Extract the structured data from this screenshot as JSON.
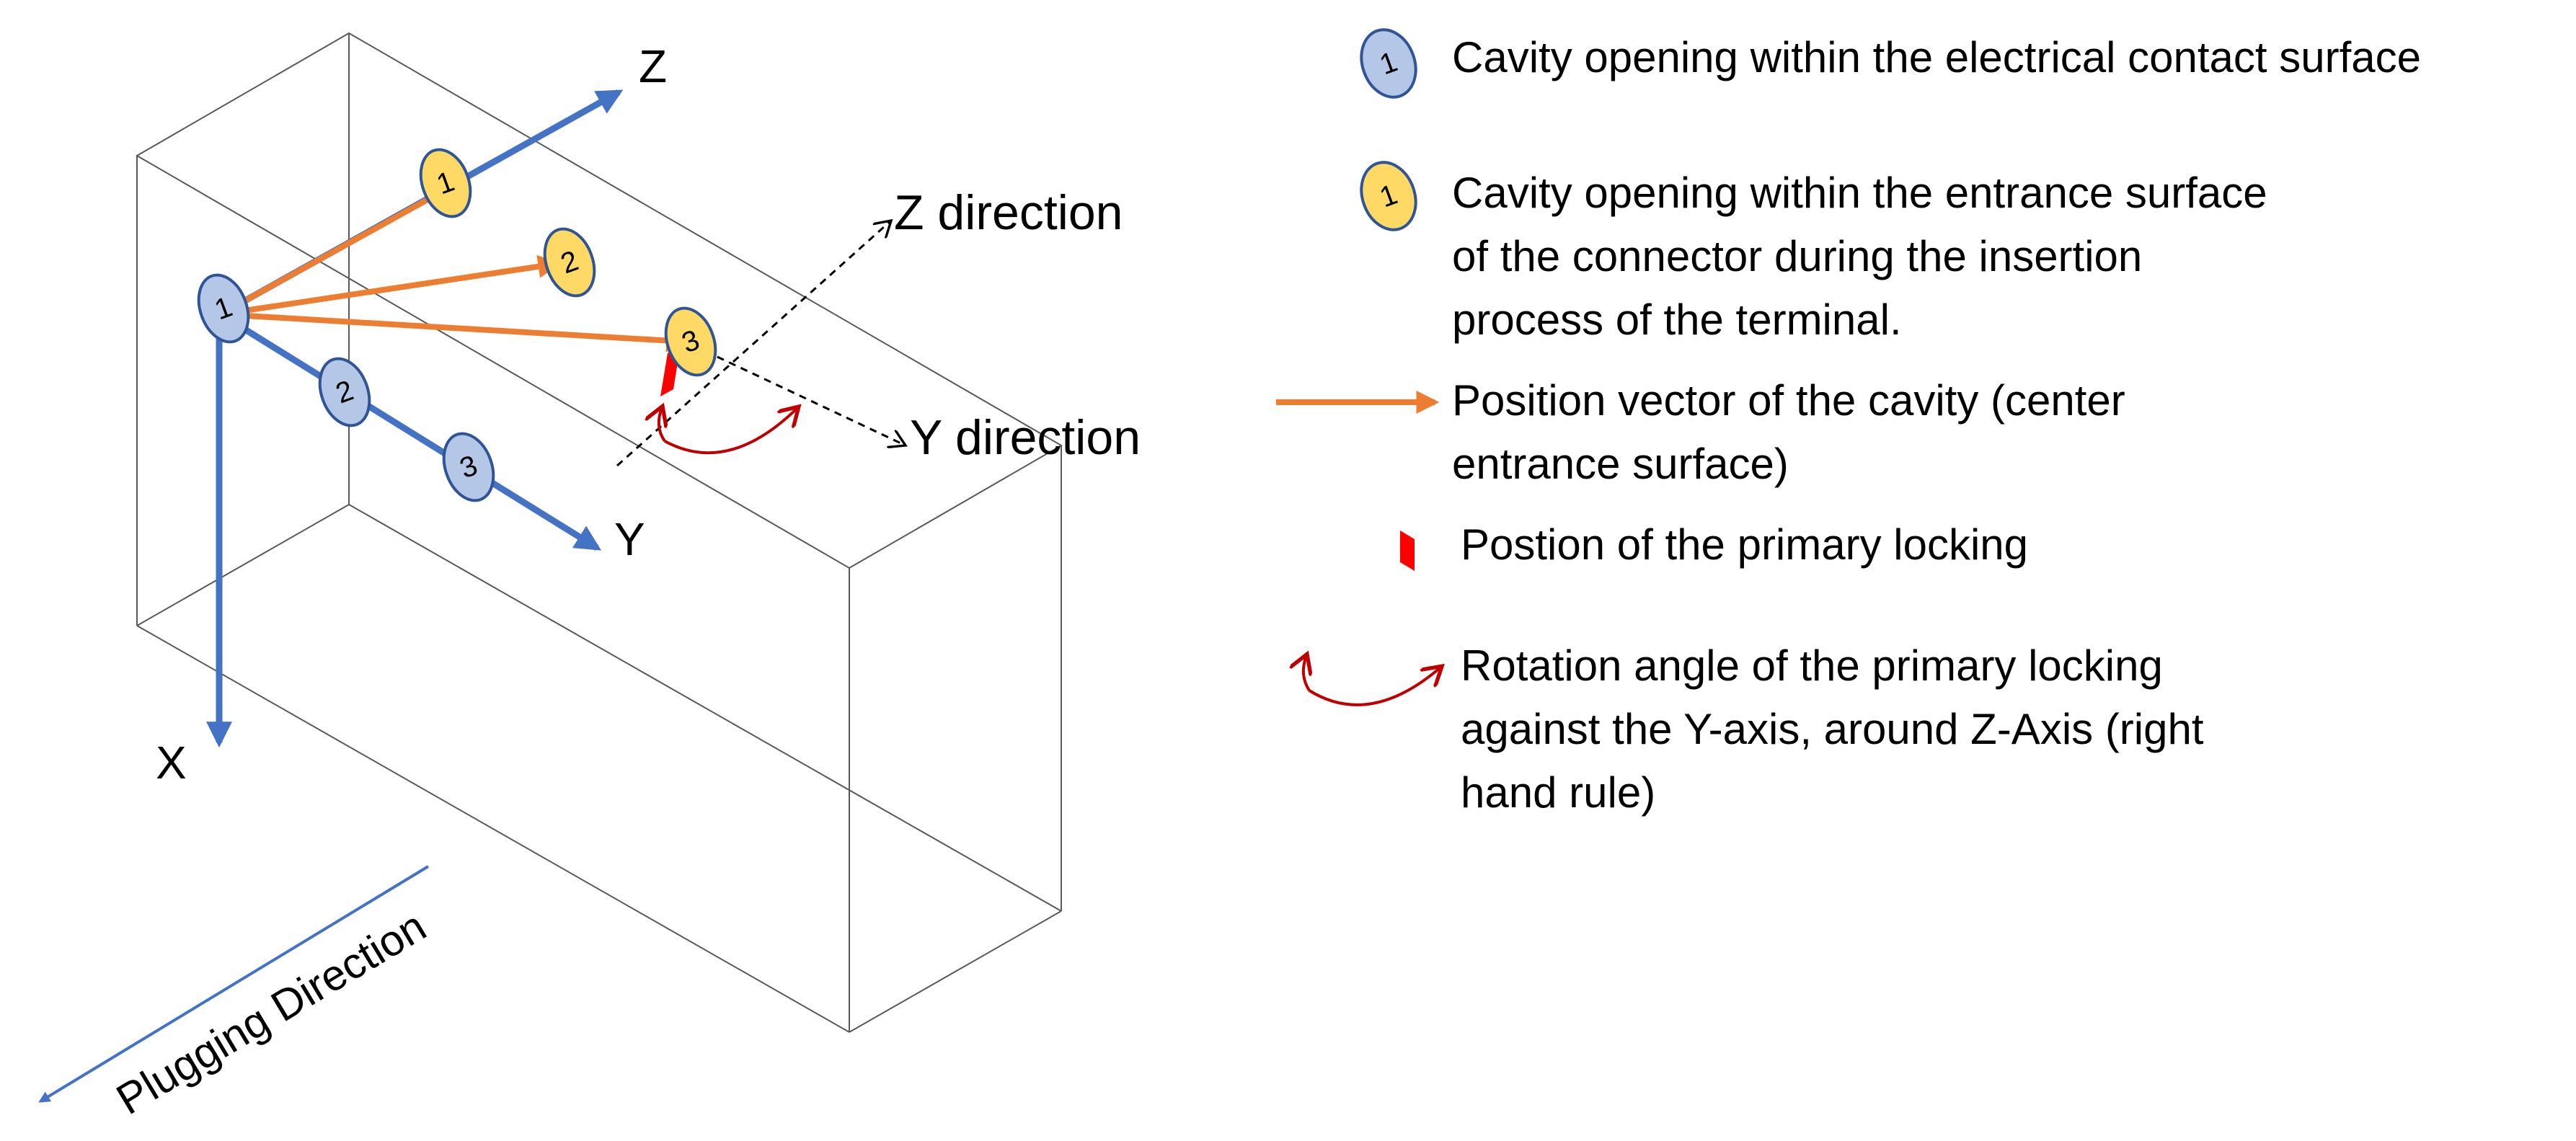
{
  "axes": {
    "z": "Z",
    "y": "Y",
    "x": "X",
    "z_direction": "Z direction",
    "y_direction": "Y direction"
  },
  "plugging_direction": "Plugging Direction",
  "markers": {
    "blue": [
      "1",
      "2",
      "3"
    ],
    "yellow": [
      "1",
      "2",
      "3"
    ]
  },
  "legend": {
    "blue_marker": "1",
    "yellow_marker": "1",
    "contact_surface": "Cavity opening within the electrical contact surface",
    "entrance_surface_lines": [
      "Cavity opening within the entrance surface",
      "of the connector during the insertion",
      "process of the terminal."
    ],
    "position_vector_lines": [
      "Position vector of the cavity (center",
      "entrance surface)"
    ],
    "primary_locking": "Postion of the primary locking",
    "rotation_angle_lines": [
      "Rotation angle of the primary locking",
      "against the Y-axis, around Z-Axis (right",
      "hand rule)"
    ]
  },
  "colors": {
    "axis_blue": "#4472C4",
    "vector_orange": "#ED7D31",
    "marker_blue_fill": "#B4C7E7",
    "marker_yellow_fill": "#FFD966",
    "marker_stroke": "#2F5597",
    "locking_red": "#FF0000",
    "arc_red": "#C00000",
    "box_line": "#595959",
    "text": "#000000"
  }
}
